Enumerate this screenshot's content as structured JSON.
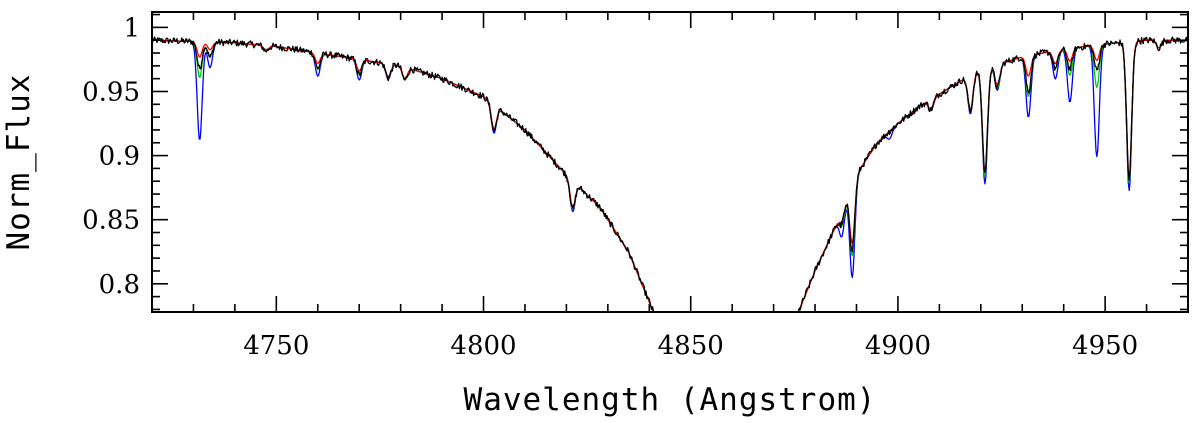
{
  "chart_data": {
    "type": "line",
    "title": "",
    "xlabel": "Wavelength (Angstrom)",
    "ylabel": "Norm_Flux",
    "xlim": [
      4720,
      4970
    ],
    "ylim": [
      0.778,
      1.012
    ],
    "x_ticks": [
      4750,
      4800,
      4850,
      4900,
      4950
    ],
    "x_tick_labels": [
      "4750",
      "4800",
      "4850",
      "4900",
      "4950"
    ],
    "x_minor_step": 10,
    "y_ticks": [
      0.8,
      0.85,
      0.9,
      0.95,
      1.0
    ],
    "y_tick_labels": [
      "0.8",
      "0.85",
      "0.9",
      "0.95",
      "1"
    ],
    "y_minor_step": 0.01,
    "grid": false,
    "legend": "none",
    "colors": {
      "observed": "#000000",
      "model_blue": "#0000ff",
      "model_green": "#00cc00",
      "model_red": "#ff0000"
    },
    "continuum": {
      "left": [
        [
          4720,
          0.99
        ],
        [
          4740,
          0.988
        ],
        [
          4750,
          0.985
        ],
        [
          4760,
          0.98
        ],
        [
          4770,
          0.975
        ],
        [
          4780,
          0.97
        ],
        [
          4790,
          0.96
        ],
        [
          4800,
          0.946
        ],
        [
          4810,
          0.92
        ],
        [
          4820,
          0.885
        ],
        [
          4828,
          0.86
        ],
        [
          4835,
          0.825
        ],
        [
          4841,
          0.778
        ]
      ],
      "right": [
        [
          4876,
          0.778
        ],
        [
          4880,
          0.81
        ],
        [
          4885,
          0.845
        ],
        [
          4890,
          0.885
        ],
        [
          4895,
          0.91
        ],
        [
          4900,
          0.925
        ],
        [
          4905,
          0.938
        ],
        [
          4910,
          0.948
        ],
        [
          4915,
          0.958
        ],
        [
          4920,
          0.967
        ],
        [
          4930,
          0.977
        ],
        [
          4940,
          0.983
        ],
        [
          4950,
          0.987
        ],
        [
          4960,
          0.99
        ],
        [
          4970,
          0.99
        ]
      ]
    },
    "series": [
      {
        "key": "observed",
        "color": "#000000",
        "lines": [
          [
            4731.5,
            0.021
          ],
          [
            4734,
            0.012
          ],
          [
            4747.5,
            0.004
          ],
          [
            4760,
            0.012
          ],
          [
            4770,
            0.012
          ],
          [
            4777,
            0.011
          ],
          [
            4781,
            0.01
          ],
          [
            4802.5,
            0.02
          ],
          [
            4821.5,
            0.022
          ],
          [
            4886.5,
            0.01
          ],
          [
            4889,
            0.05
          ],
          [
            4908,
            0.008
          ],
          [
            4917.5,
            0.028
          ],
          [
            4921,
            0.082
          ],
          [
            4924,
            0.018
          ],
          [
            4931.5,
            0.028
          ],
          [
            4938,
            0.014
          ],
          [
            4941.5,
            0.016
          ],
          [
            4948,
            0.02
          ],
          [
            4955.8,
            0.108
          ],
          [
            4963,
            0.006
          ]
        ],
        "noise": 0.0026
      },
      {
        "key": "model_blue",
        "color": "#0000ff",
        "lines": [
          [
            4731.5,
            0.077
          ],
          [
            4734,
            0.02
          ],
          [
            4747.5,
            0.004
          ],
          [
            4760,
            0.018
          ],
          [
            4770,
            0.016
          ],
          [
            4777,
            0.012
          ],
          [
            4781,
            0.01
          ],
          [
            4802.5,
            0.022
          ],
          [
            4821.5,
            0.024
          ],
          [
            4886.5,
            0.02
          ],
          [
            4889,
            0.072
          ],
          [
            4898,
            0.006
          ],
          [
            4908,
            0.009
          ],
          [
            4917.5,
            0.03
          ],
          [
            4921,
            0.09
          ],
          [
            4924,
            0.02
          ],
          [
            4931.5,
            0.048
          ],
          [
            4938,
            0.022
          ],
          [
            4941.5,
            0.042
          ],
          [
            4948,
            0.087
          ],
          [
            4955.8,
            0.116
          ],
          [
            4963,
            0.006
          ]
        ],
        "noise": 0
      },
      {
        "key": "model_green",
        "color": "#00cc00",
        "lines": [
          [
            4731.5,
            0.028
          ],
          [
            4734,
            0.012
          ],
          [
            4747.5,
            0.004
          ],
          [
            4760,
            0.013
          ],
          [
            4770,
            0.012
          ],
          [
            4777,
            0.011
          ],
          [
            4781,
            0.01
          ],
          [
            4802.5,
            0.02
          ],
          [
            4821.5,
            0.022
          ],
          [
            4886.5,
            0.012
          ],
          [
            4889,
            0.055
          ],
          [
            4908,
            0.008
          ],
          [
            4917.5,
            0.028
          ],
          [
            4921,
            0.084
          ],
          [
            4924,
            0.018
          ],
          [
            4931.5,
            0.032
          ],
          [
            4938,
            0.014
          ],
          [
            4941.5,
            0.021
          ],
          [
            4948,
            0.033
          ],
          [
            4955.8,
            0.11
          ],
          [
            4963,
            0.006
          ]
        ],
        "noise": 0
      },
      {
        "key": "model_red",
        "color": "#ff0000",
        "lines": [
          [
            4731.5,
            0.012
          ],
          [
            4734,
            0.006
          ],
          [
            4747.5,
            0.004
          ],
          [
            4760,
            0.008
          ],
          [
            4770,
            0.009
          ],
          [
            4777,
            0.01
          ],
          [
            4781,
            0.009
          ],
          [
            4802.5,
            0.019
          ],
          [
            4821.5,
            0.021
          ],
          [
            4886.5,
            0.008
          ],
          [
            4889,
            0.045
          ],
          [
            4908,
            0.008
          ],
          [
            4917.5,
            0.027
          ],
          [
            4921,
            0.08
          ],
          [
            4924,
            0.016
          ],
          [
            4931.5,
            0.016
          ],
          [
            4938,
            0.01
          ],
          [
            4941.5,
            0.01
          ],
          [
            4948,
            0.012
          ],
          [
            4955.8,
            0.106
          ],
          [
            4963,
            0.006
          ]
        ],
        "noise": 0
      }
    ]
  }
}
